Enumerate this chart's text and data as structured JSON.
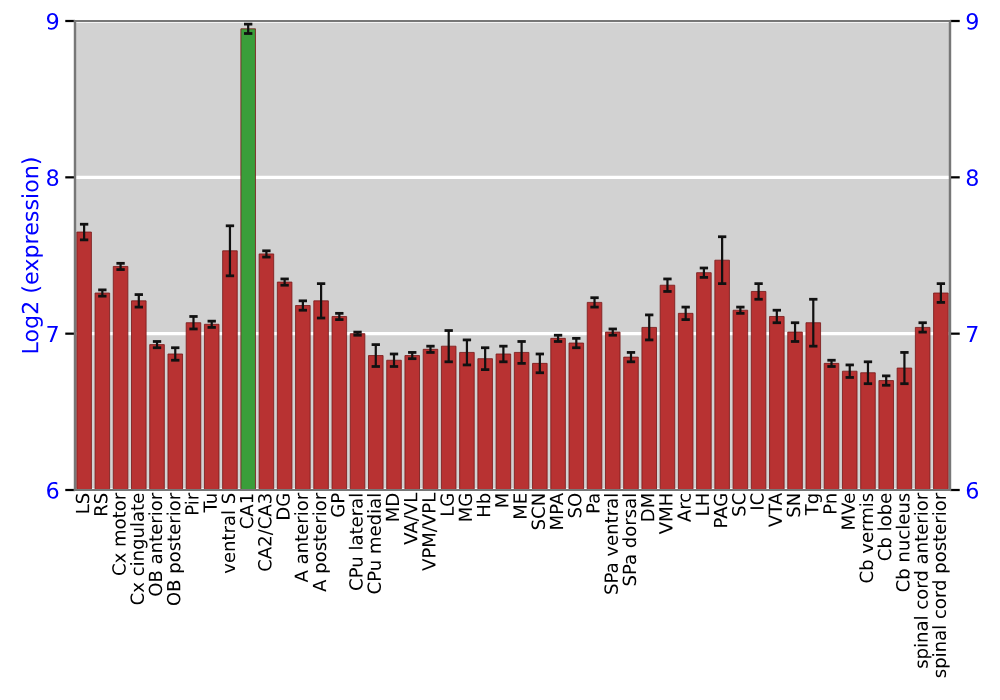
{
  "chart_data": {
    "type": "bar",
    "ylabel": "Log2 (expression)",
    "categories": [
      "LS",
      "RS",
      "Cx motor",
      "Cx cingulate",
      "OB anterior",
      "OB posterior",
      "Pir",
      "Tu",
      "ventral S",
      "CA1",
      "CA2/CA3",
      "DG",
      "A anterior",
      "A posterior",
      "GP",
      "CPu lateral",
      "CPu medial",
      "MD",
      "VA/VL",
      "VPM/VPL",
      "LG",
      "MG",
      "Hb",
      "M",
      "ME",
      "SCN",
      "MPA",
      "SO",
      "Pa",
      "SPa ventral",
      "SPa dorsal",
      "DM",
      "VMH",
      "Arc",
      "LH",
      "PAG",
      "SC",
      "IC",
      "VTA",
      "SN",
      "Tg",
      "Pn",
      "MVe",
      "Cb vermis",
      "Cb lobe",
      "Cb nucleus",
      "spinal cord anterior",
      "spinal cord posterior"
    ],
    "values": [
      7.65,
      7.26,
      7.43,
      7.21,
      6.93,
      6.87,
      7.07,
      7.06,
      7.53,
      8.95,
      7.51,
      7.33,
      7.18,
      7.21,
      7.11,
      7.0,
      6.86,
      6.83,
      6.86,
      6.9,
      6.92,
      6.88,
      6.84,
      6.87,
      6.88,
      6.81,
      6.97,
      6.94,
      7.2,
      7.01,
      6.85,
      7.04,
      7.31,
      7.13,
      7.39,
      7.47,
      7.15,
      7.27,
      7.11,
      7.01,
      7.07,
      6.81,
      6.76,
      6.75,
      6.7,
      6.78,
      7.04,
      7.26
    ],
    "errors": [
      0.05,
      0.02,
      0.02,
      0.04,
      0.02,
      0.04,
      0.04,
      0.02,
      0.16,
      0.03,
      0.02,
      0.02,
      0.03,
      0.11,
      0.02,
      0.01,
      0.07,
      0.04,
      0.02,
      0.02,
      0.1,
      0.08,
      0.07,
      0.05,
      0.07,
      0.06,
      0.02,
      0.03,
      0.03,
      0.02,
      0.03,
      0.08,
      0.04,
      0.04,
      0.03,
      0.15,
      0.02,
      0.05,
      0.04,
      0.06,
      0.15,
      0.02,
      0.04,
      0.07,
      0.03,
      0.1,
      0.03,
      0.06
    ],
    "colors": [
      "#b83232",
      "#b83232",
      "#b83232",
      "#b83232",
      "#b83232",
      "#b83232",
      "#b83232",
      "#b83232",
      "#b83232",
      "#3a9e3a",
      "#b83232",
      "#b83232",
      "#b83232",
      "#b83232",
      "#b83232",
      "#b83232",
      "#b83232",
      "#b83232",
      "#b83232",
      "#b83232",
      "#b83232",
      "#b83232",
      "#b83232",
      "#b83232",
      "#b83232",
      "#b83232",
      "#b83232",
      "#b83232",
      "#b83232",
      "#b83232",
      "#b83232",
      "#b83232",
      "#b83232",
      "#b83232",
      "#b83232",
      "#b83232",
      "#b83232",
      "#b83232",
      "#b83232",
      "#b83232",
      "#b83232",
      "#b83232",
      "#b83232",
      "#b83232",
      "#b83232",
      "#b83232",
      "#b83232",
      "#b83232"
    ],
    "ylim": [
      6,
      9
    ],
    "yticks": [
      6,
      7,
      8,
      9
    ],
    "y2lim": [
      6,
      9
    ],
    "y2ticks": [
      6,
      7,
      8,
      9
    ],
    "grid": "y",
    "legend": false
  }
}
